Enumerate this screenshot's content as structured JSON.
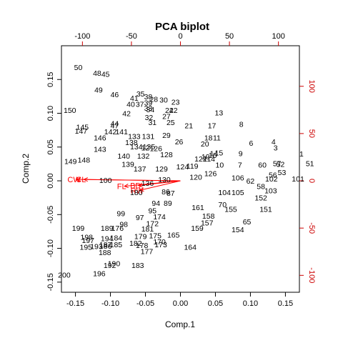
{
  "chart_data": {
    "type": "scatter",
    "title": "PCA biplot",
    "xlabel": "Comp.1",
    "ylabel": "Comp.2",
    "xlim": [
      -0.17,
      0.17
    ],
    "ylim": [
      -0.165,
      0.2
    ],
    "x_ticks": [
      -0.15,
      -0.1,
      -0.05,
      0.0,
      0.05,
      0.1,
      0.15
    ],
    "x_tick_labels": [
      "-0.15",
      "-0.10",
      "-0.05",
      "0.00",
      "0.05",
      "0.10",
      "0.15"
    ],
    "y_ticks": [
      -0.15,
      -0.1,
      -0.05,
      0.0,
      0.05,
      0.1,
      0.15
    ],
    "y_tick_labels": [
      "-0.15",
      "-0.10",
      "-0.05",
      "0.00",
      "0.05",
      "0.10",
      "0.15"
    ],
    "loading_axis": {
      "xlim": [
        -121.4,
        121.4
      ],
      "ylim": [
        -117.9,
        142.9
      ],
      "x_ticks": [
        -100,
        -50,
        0,
        50,
        100
      ],
      "x_tick_labels": [
        "-100",
        "-50",
        "0",
        "50",
        "100"
      ],
      "y_ticks": [
        -100,
        -50,
        0,
        50,
        100
      ],
      "y_tick_labels": [
        "-100",
        "-50",
        "0",
        "50",
        "100"
      ],
      "color": "#cc0000"
    },
    "vectors": [
      {
        "name": "CW",
        "x": -0.148,
        "y": 0.002
      },
      {
        "name": "CL",
        "x": -0.138,
        "y": 0.002
      },
      {
        "name": "RW",
        "x": -0.058,
        "y": -0.014
      },
      {
        "name": "FL",
        "x": -0.08,
        "y": -0.008
      },
      {
        "name": "BD",
        "x": -0.06,
        "y": -0.007
      }
    ],
    "vector_color": "#ff0000",
    "scores": [
      {
        "label": "50",
        "x": -0.146,
        "y": 0.168
      },
      {
        "label": "48",
        "x": -0.119,
        "y": 0.16
      },
      {
        "label": "45",
        "x": -0.107,
        "y": 0.158
      },
      {
        "label": "49",
        "x": -0.117,
        "y": 0.135
      },
      {
        "label": "46",
        "x": -0.094,
        "y": 0.128
      },
      {
        "label": "35",
        "x": -0.057,
        "y": 0.129
      },
      {
        "label": "41",
        "x": -0.066,
        "y": 0.123
      },
      {
        "label": "38",
        "x": -0.046,
        "y": 0.125
      },
      {
        "label": "28",
        "x": -0.038,
        "y": 0.121
      },
      {
        "label": "30",
        "x": -0.024,
        "y": 0.12
      },
      {
        "label": "40",
        "x": -0.071,
        "y": 0.114
      },
      {
        "label": "37",
        "x": -0.058,
        "y": 0.114
      },
      {
        "label": "39",
        "x": -0.046,
        "y": 0.116
      },
      {
        "label": "33",
        "x": -0.046,
        "y": 0.108
      },
      {
        "label": "23",
        "x": -0.007,
        "y": 0.117
      },
      {
        "label": "34",
        "x": -0.043,
        "y": 0.106
      },
      {
        "label": "22",
        "x": -0.01,
        "y": 0.105
      },
      {
        "label": "24",
        "x": -0.016,
        "y": 0.105
      },
      {
        "label": "42",
        "x": -0.077,
        "y": 0.1
      },
      {
        "label": "27",
        "x": -0.02,
        "y": 0.096
      },
      {
        "label": "32",
        "x": -0.045,
        "y": 0.094
      },
      {
        "label": "31",
        "x": -0.04,
        "y": 0.087
      },
      {
        "label": "25",
        "x": -0.014,
        "y": 0.087
      },
      {
        "label": "13",
        "x": 0.055,
        "y": 0.101
      },
      {
        "label": "21",
        "x": 0.012,
        "y": 0.082
      },
      {
        "label": "17",
        "x": 0.045,
        "y": 0.082
      },
      {
        "label": "8",
        "x": 0.087,
        "y": 0.084
      },
      {
        "label": "150",
        "x": -0.158,
        "y": 0.105
      },
      {
        "label": "145",
        "x": -0.14,
        "y": 0.08
      },
      {
        "label": "147",
        "x": -0.142,
        "y": 0.074
      },
      {
        "label": "44",
        "x": -0.094,
        "y": 0.085
      },
      {
        "label": "47",
        "x": -0.094,
        "y": 0.082
      },
      {
        "label": "142",
        "x": -0.1,
        "y": 0.073
      },
      {
        "label": "141",
        "x": -0.084,
        "y": 0.073
      },
      {
        "label": "146",
        "x": -0.115,
        "y": 0.064
      },
      {
        "label": "133",
        "x": -0.066,
        "y": 0.066
      },
      {
        "label": "131",
        "x": -0.046,
        "y": 0.066
      },
      {
        "label": "29",
        "x": -0.02,
        "y": 0.068
      },
      {
        "label": "11",
        "x": 0.052,
        "y": 0.064
      },
      {
        "label": "18",
        "x": 0.04,
        "y": 0.064
      },
      {
        "label": "26",
        "x": -0.002,
        "y": 0.058
      },
      {
        "label": "20",
        "x": 0.035,
        "y": 0.055
      },
      {
        "label": "6",
        "x": 0.101,
        "y": 0.056
      },
      {
        "label": "4",
        "x": 0.133,
        "y": 0.058
      },
      {
        "label": "138",
        "x": -0.07,
        "y": 0.057
      },
      {
        "label": "143",
        "x": -0.115,
        "y": 0.047
      },
      {
        "label": "134",
        "x": -0.063,
        "y": 0.051
      },
      {
        "label": "135",
        "x": -0.045,
        "y": 0.051
      },
      {
        "label": "12",
        "x": -0.05,
        "y": 0.049
      },
      {
        "label": "126",
        "x": -0.035,
        "y": 0.048
      },
      {
        "label": "3",
        "x": 0.136,
        "y": 0.049
      },
      {
        "label": "9",
        "x": 0.086,
        "y": 0.041
      },
      {
        "label": "1",
        "x": 0.173,
        "y": 0.04
      },
      {
        "label": "140",
        "x": -0.081,
        "y": 0.037
      },
      {
        "label": "132",
        "x": -0.053,
        "y": 0.037
      },
      {
        "label": "128",
        "x": -0.02,
        "y": 0.039
      },
      {
        "label": "14",
        "x": 0.048,
        "y": 0.041
      },
      {
        "label": "15",
        "x": 0.055,
        "y": 0.042
      },
      {
        "label": "16",
        "x": 0.046,
        "y": 0.038
      },
      {
        "label": "19",
        "x": 0.036,
        "y": 0.036
      },
      {
        "label": "122",
        "x": 0.029,
        "y": 0.033
      },
      {
        "label": "114",
        "x": 0.041,
        "y": 0.033
      },
      {
        "label": "149",
        "x": -0.157,
        "y": 0.029
      },
      {
        "label": "148",
        "x": -0.138,
        "y": 0.031
      },
      {
        "label": "139",
        "x": -0.075,
        "y": 0.025
      },
      {
        "label": "137",
        "x": -0.058,
        "y": 0.018
      },
      {
        "label": "129",
        "x": -0.027,
        "y": 0.018
      },
      {
        "label": "124",
        "x": 0.003,
        "y": 0.021
      },
      {
        "label": "119",
        "x": 0.017,
        "y": 0.022
      },
      {
        "label": "10",
        "x": 0.056,
        "y": 0.024
      },
      {
        "label": "7",
        "x": 0.085,
        "y": 0.024
      },
      {
        "label": "60",
        "x": 0.117,
        "y": 0.024
      },
      {
        "label": "57",
        "x": 0.138,
        "y": 0.026
      },
      {
        "label": "52",
        "x": 0.143,
        "y": 0.025
      },
      {
        "label": "51",
        "x": 0.185,
        "y": 0.026
      },
      {
        "label": "53",
        "x": 0.145,
        "y": 0.013
      },
      {
        "label": "56",
        "x": 0.132,
        "y": 0.009
      },
      {
        "label": "100",
        "x": -0.107,
        "y": 0.001
      },
      {
        "label": "136",
        "x": -0.047,
        "y": -0.003
      },
      {
        "label": "130",
        "x": -0.023,
        "y": 0.002
      },
      {
        "label": "120",
        "x": 0.022,
        "y": 0.006
      },
      {
        "label": "126b",
        "x": 0.043,
        "y": 0.011
      },
      {
        "label": "106",
        "x": 0.082,
        "y": 0.005
      },
      {
        "label": "101",
        "x": 0.168,
        "y": 0.003
      },
      {
        "label": "102",
        "x": 0.13,
        "y": 0.003
      },
      {
        "label": "62",
        "x": 0.1,
        "y": 0.0
      },
      {
        "label": "58",
        "x": 0.115,
        "y": -0.008
      },
      {
        "label": "103",
        "x": 0.129,
        "y": -0.014
      },
      {
        "label": "180",
        "x": -0.063,
        "y": -0.017
      },
      {
        "label": "86",
        "x": -0.021,
        "y": -0.016
      },
      {
        "label": "87",
        "x": -0.014,
        "y": -0.018
      },
      {
        "label": "104",
        "x": 0.063,
        "y": -0.017
      },
      {
        "label": "105",
        "x": 0.082,
        "y": -0.017
      },
      {
        "label": "152",
        "x": 0.115,
        "y": -0.025
      },
      {
        "label": "94",
        "x": -0.035,
        "y": -0.033
      },
      {
        "label": "89",
        "x": -0.018,
        "y": -0.033
      },
      {
        "label": "161",
        "x": 0.025,
        "y": -0.039
      },
      {
        "label": "70",
        "x": 0.06,
        "y": -0.035
      },
      {
        "label": "155",
        "x": 0.072,
        "y": -0.042
      },
      {
        "label": "151",
        "x": 0.122,
        "y": -0.042
      },
      {
        "label": "99",
        "x": -0.085,
        "y": -0.048
      },
      {
        "label": "95",
        "x": -0.04,
        "y": -0.044
      },
      {
        "label": "97",
        "x": -0.058,
        "y": -0.054
      },
      {
        "label": "174",
        "x": -0.03,
        "y": -0.053
      },
      {
        "label": "158",
        "x": 0.04,
        "y": -0.052
      },
      {
        "label": "65",
        "x": 0.095,
        "y": -0.06
      },
      {
        "label": "98",
        "x": -0.081,
        "y": -0.064
      },
      {
        "label": "172",
        "x": -0.04,
        "y": -0.063
      },
      {
        "label": "157",
        "x": 0.038,
        "y": -0.062
      },
      {
        "label": "199",
        "x": -0.146,
        "y": -0.07
      },
      {
        "label": "189",
        "x": -0.105,
        "y": -0.07
      },
      {
        "label": "176",
        "x": -0.09,
        "y": -0.07
      },
      {
        "label": "181",
        "x": -0.047,
        "y": -0.071
      },
      {
        "label": "159",
        "x": 0.024,
        "y": -0.07
      },
      {
        "label": "154",
        "x": 0.082,
        "y": -0.072
      },
      {
        "label": "198",
        "x": -0.134,
        "y": -0.083
      },
      {
        "label": "194",
        "x": -0.105,
        "y": -0.085
      },
      {
        "label": "184",
        "x": -0.092,
        "y": -0.084
      },
      {
        "label": "179",
        "x": -0.057,
        "y": -0.082
      },
      {
        "label": "175",
        "x": -0.036,
        "y": -0.081
      },
      {
        "label": "165",
        "x": -0.01,
        "y": -0.08
      },
      {
        "label": "197",
        "x": -0.132,
        "y": -0.088
      },
      {
        "label": "187",
        "x": -0.107,
        "y": -0.094
      },
      {
        "label": "185",
        "x": -0.092,
        "y": -0.094
      },
      {
        "label": "182",
        "x": -0.064,
        "y": -0.092
      },
      {
        "label": "170",
        "x": -0.03,
        "y": -0.09
      },
      {
        "label": "195",
        "x": -0.135,
        "y": -0.098
      },
      {
        "label": "193",
        "x": -0.12,
        "y": -0.097
      },
      {
        "label": "186",
        "x": -0.107,
        "y": -0.096
      },
      {
        "label": "178",
        "x": -0.055,
        "y": -0.095
      },
      {
        "label": "173",
        "x": -0.028,
        "y": -0.094
      },
      {
        "label": "164",
        "x": 0.014,
        "y": -0.098
      },
      {
        "label": "188",
        "x": -0.108,
        "y": -0.106
      },
      {
        "label": "177",
        "x": -0.048,
        "y": -0.104
      },
      {
        "label": "190",
        "x": -0.095,
        "y": -0.122
      },
      {
        "label": "192",
        "x": -0.101,
        "y": -0.125
      },
      {
        "label": "183",
        "x": -0.061,
        "y": -0.125
      },
      {
        "label": "196",
        "x": -0.116,
        "y": -0.137
      },
      {
        "label": "200",
        "x": -0.166,
        "y": -0.139
      }
    ]
  }
}
